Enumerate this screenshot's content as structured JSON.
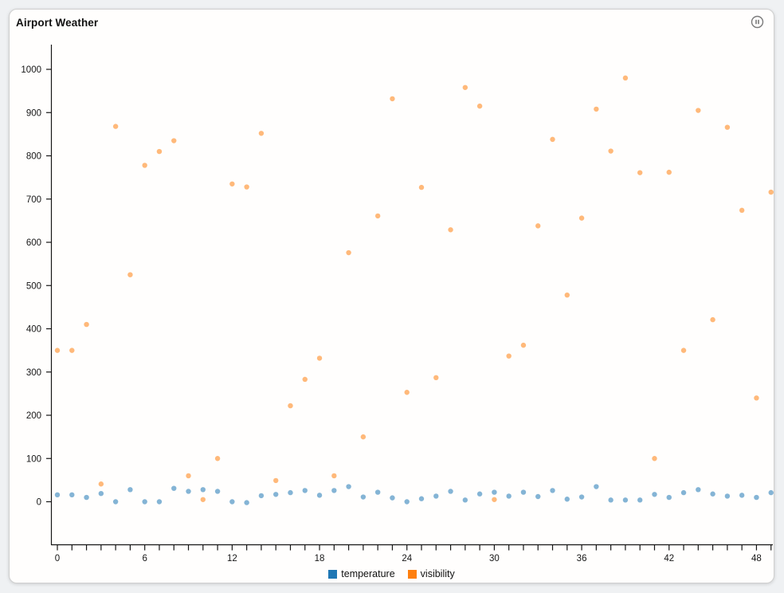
{
  "card": {
    "title": "Airport Weather"
  },
  "icons": {
    "menu": "pause-circle"
  },
  "chart_data": {
    "type": "scatter",
    "title": "Airport Weather",
    "x": [
      0,
      1,
      2,
      3,
      4,
      5,
      6,
      7,
      8,
      9,
      10,
      11,
      12,
      13,
      14,
      15,
      16,
      17,
      18,
      19,
      20,
      21,
      22,
      23,
      24,
      25,
      26,
      27,
      28,
      29,
      30,
      31,
      32,
      33,
      34,
      35,
      36,
      37,
      38,
      39,
      40,
      41,
      42,
      43,
      44,
      45,
      46,
      47,
      48,
      49
    ],
    "series": [
      {
        "name": "temperature",
        "color": "#1f77b4",
        "values": [
          16,
          16,
          10,
          19,
          0,
          28,
          0,
          0,
          31,
          24,
          28,
          24,
          0,
          -2,
          14,
          17,
          21,
          26,
          15,
          26,
          35,
          11,
          22,
          9,
          0,
          7,
          13,
          24,
          4,
          18,
          22,
          13,
          22,
          12,
          26,
          6,
          11,
          35,
          4,
          4,
          4,
          17,
          10,
          21,
          28,
          18,
          13,
          15,
          10,
          21
        ]
      },
      {
        "name": "visibility",
        "color": "#ff7f0e",
        "values": [
          350,
          350,
          410,
          41,
          868,
          525,
          778,
          810,
          835,
          60,
          5,
          100,
          735,
          728,
          852,
          49,
          222,
          283,
          332,
          60,
          576,
          150,
          661,
          932,
          253,
          727,
          287,
          629,
          958,
          915,
          5,
          337,
          362,
          638,
          838,
          478,
          656,
          908,
          811,
          980,
          761,
          100,
          762,
          350,
          905,
          421,
          866,
          674,
          240,
          716
        ]
      }
    ],
    "x_axis": {
      "ticks": [
        0,
        6,
        12,
        18,
        24,
        30,
        36,
        42,
        48
      ],
      "minor_step": 1,
      "min": 0,
      "max": 49
    },
    "y_axis": {
      "ticks": [
        0,
        100,
        200,
        300,
        400,
        500,
        600,
        700,
        800,
        900,
        1000
      ]
    },
    "point_opacity": 0.55,
    "grid": false,
    "legend_position": "bottom"
  }
}
